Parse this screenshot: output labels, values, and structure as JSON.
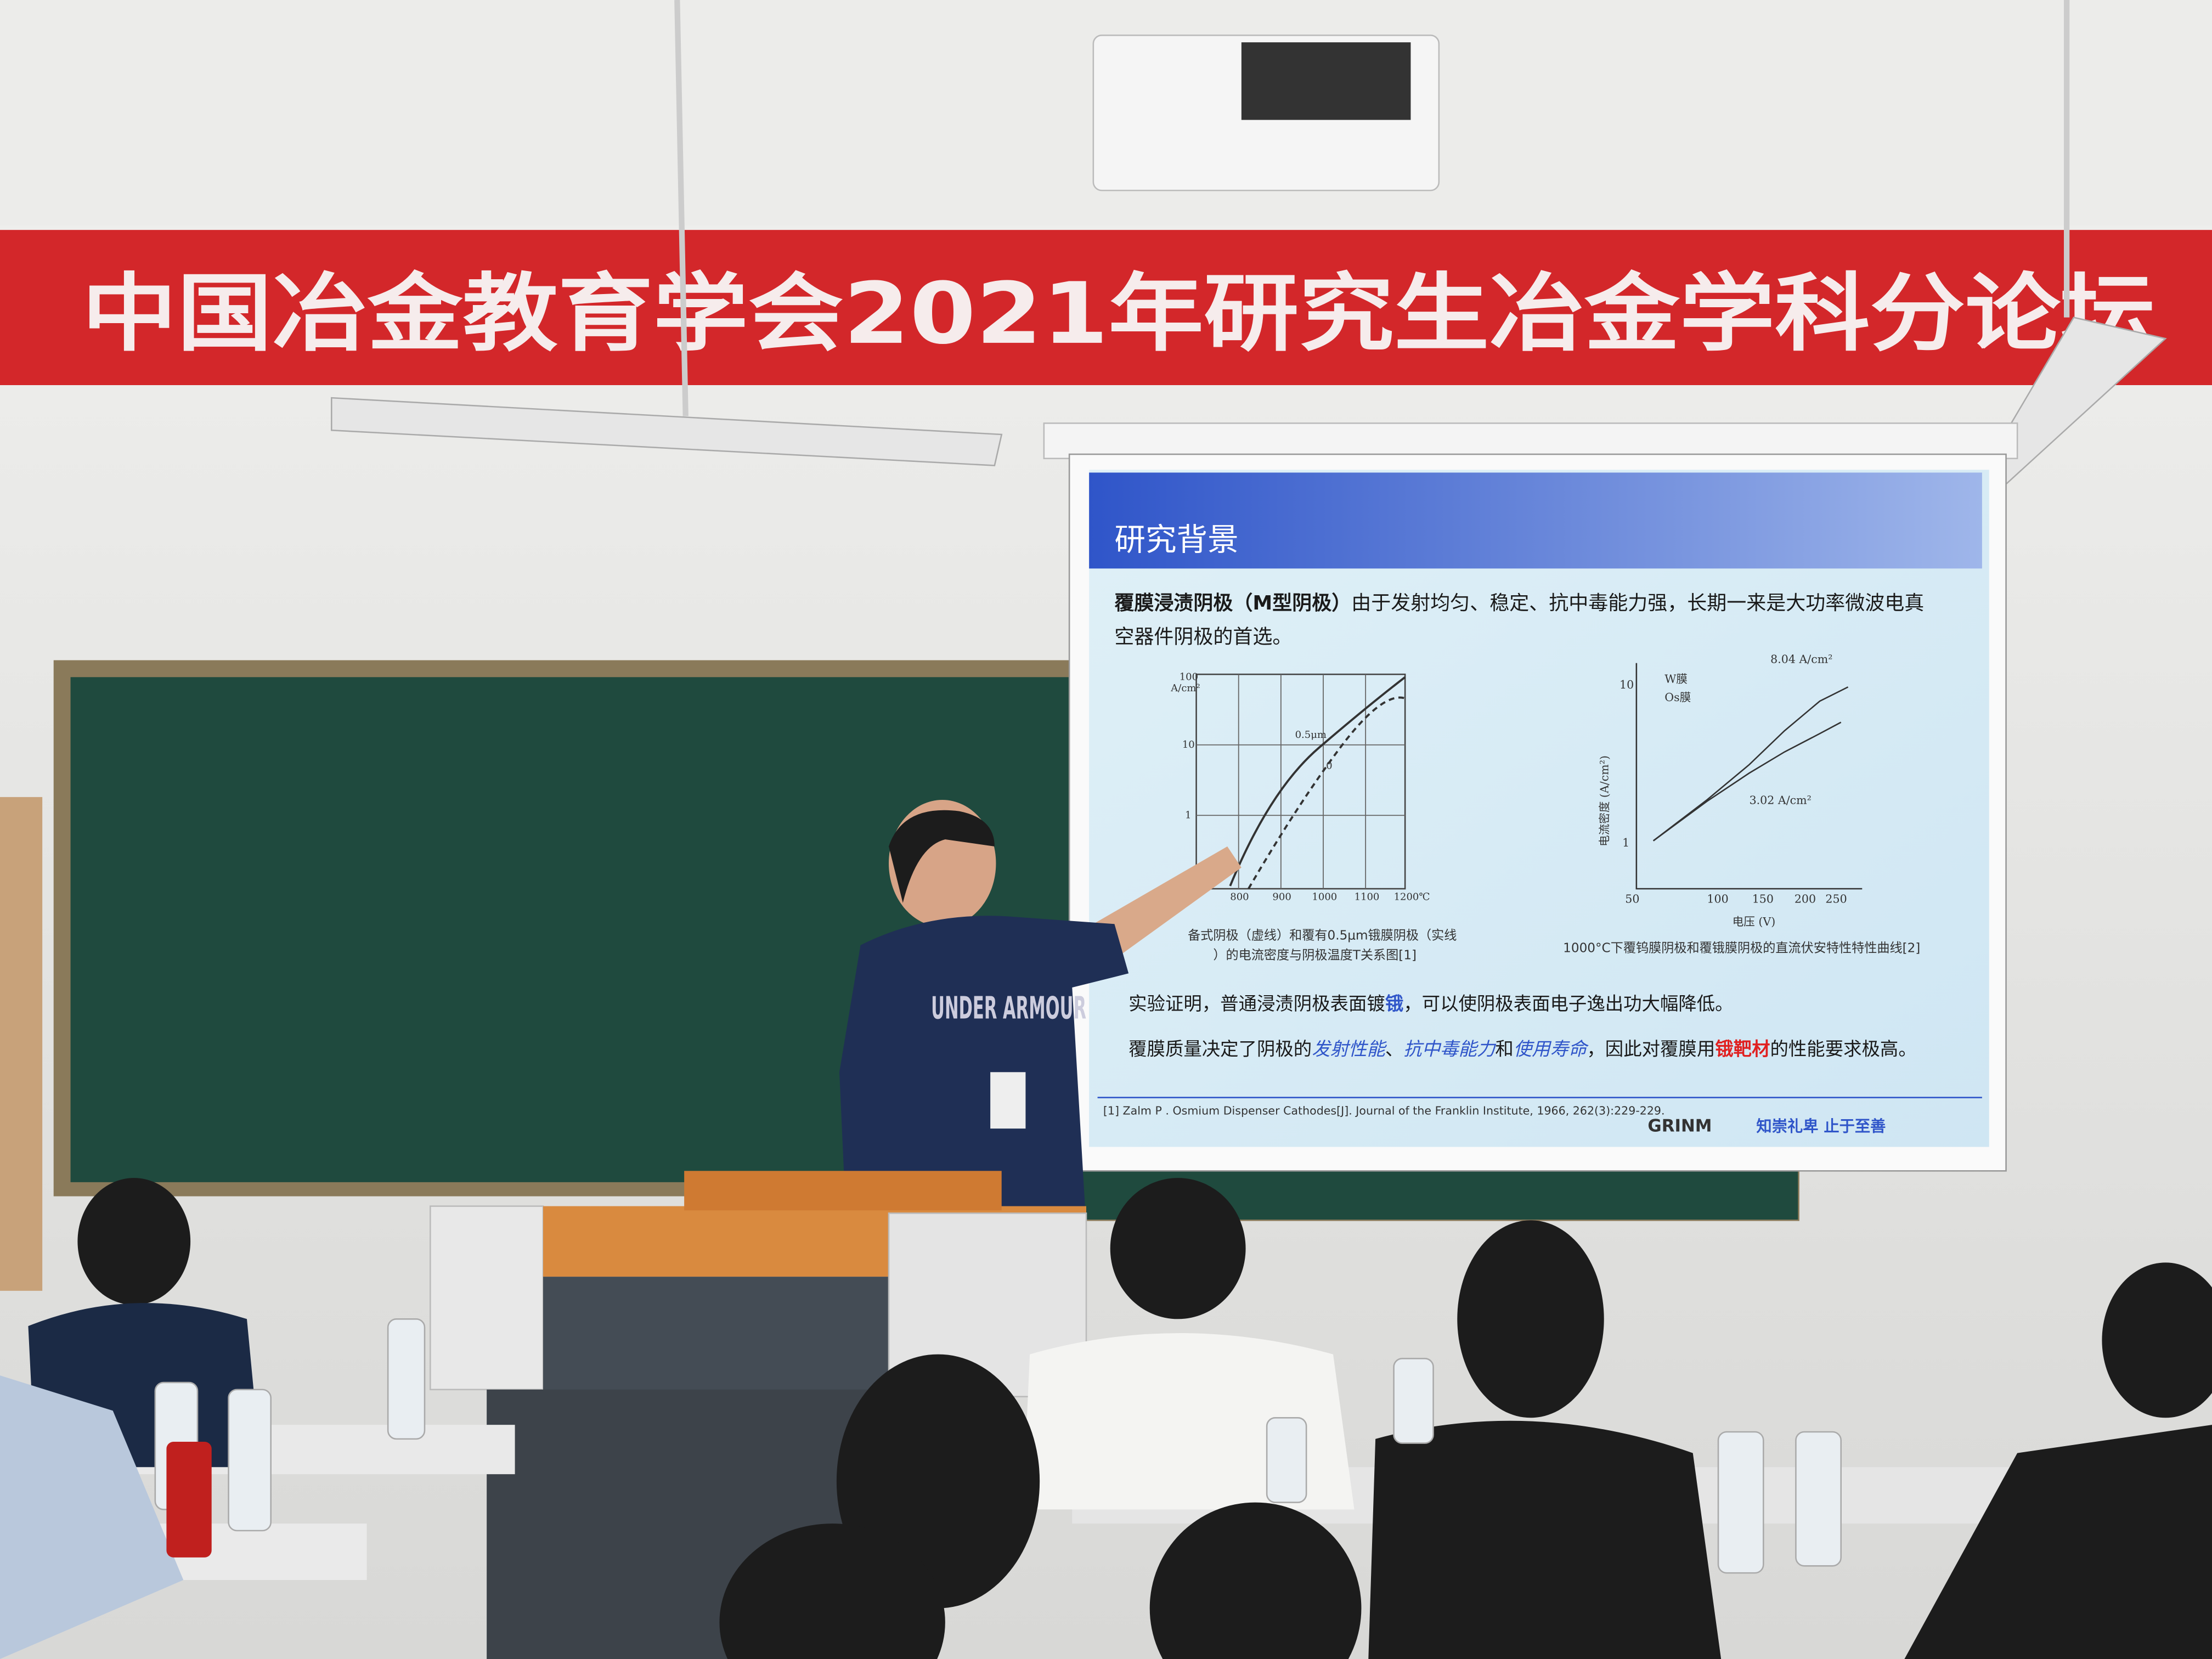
{
  "banner": {
    "text": "中国冶金教育学会2021年研究生冶金学科分论坛"
  },
  "slide": {
    "title": "研究背景",
    "intro_bold": "覆膜浸渍阴极（M型阴极）",
    "intro_line1": "由于发射均匀、稳定、抗中毒能力强，长期一来是大功率微波电真",
    "intro_line2": "空器件阴极的首选。",
    "left_figure": {
      "y_unit": "A/cm²",
      "y_ticks": [
        "100",
        "10",
        "1"
      ],
      "x_ticks": [
        "800",
        "900",
        "1000",
        "1100",
        "1200℃"
      ],
      "curve_labels": [
        "0.5μm",
        "0"
      ],
      "caption_line1": "备式阴极（虚线）和覆有0.5μm锇膜阴极（实线",
      "caption_line2": "）的电流密度与阴极温度T关系图[1]"
    },
    "right_figure": {
      "legend": [
        "W膜",
        "Os膜"
      ],
      "annotations": [
        "8.04 A/cm²",
        "3.02 A/cm²"
      ],
      "y_ticks": [
        "10",
        "1"
      ],
      "x_ticks": [
        "50",
        "100",
        "150",
        "200",
        "250"
      ],
      "x_label": "电压 (V)",
      "y_label": "电流密度 (A/cm²)",
      "caption": "1000°C下覆钨膜阴极和覆锇膜阴极的直流伏安特性特性曲线[2]"
    },
    "point1": [
      "实验证明，普通浸渍阴极表面镀",
      "锇",
      "，可以使阴极表面电子逸出功大幅降低。"
    ],
    "point2": [
      "覆膜质量决定了阴极的",
      "发射性能",
      "、",
      "抗中毒能力",
      "和",
      "使用寿命",
      "，因此对覆膜用",
      "锇靶材",
      "的性能要求极高。"
    ],
    "references": [
      "[1] Zalm P . Osmium Dispenser Cathodes[J]. Journal of the Franklin Institute, 1966, 262(3):229-229."
    ],
    "footer": {
      "logo": "GRINM",
      "motto": "知崇礼卑 止于至善"
    }
  },
  "shirt": "UNDER ARMOUR"
}
